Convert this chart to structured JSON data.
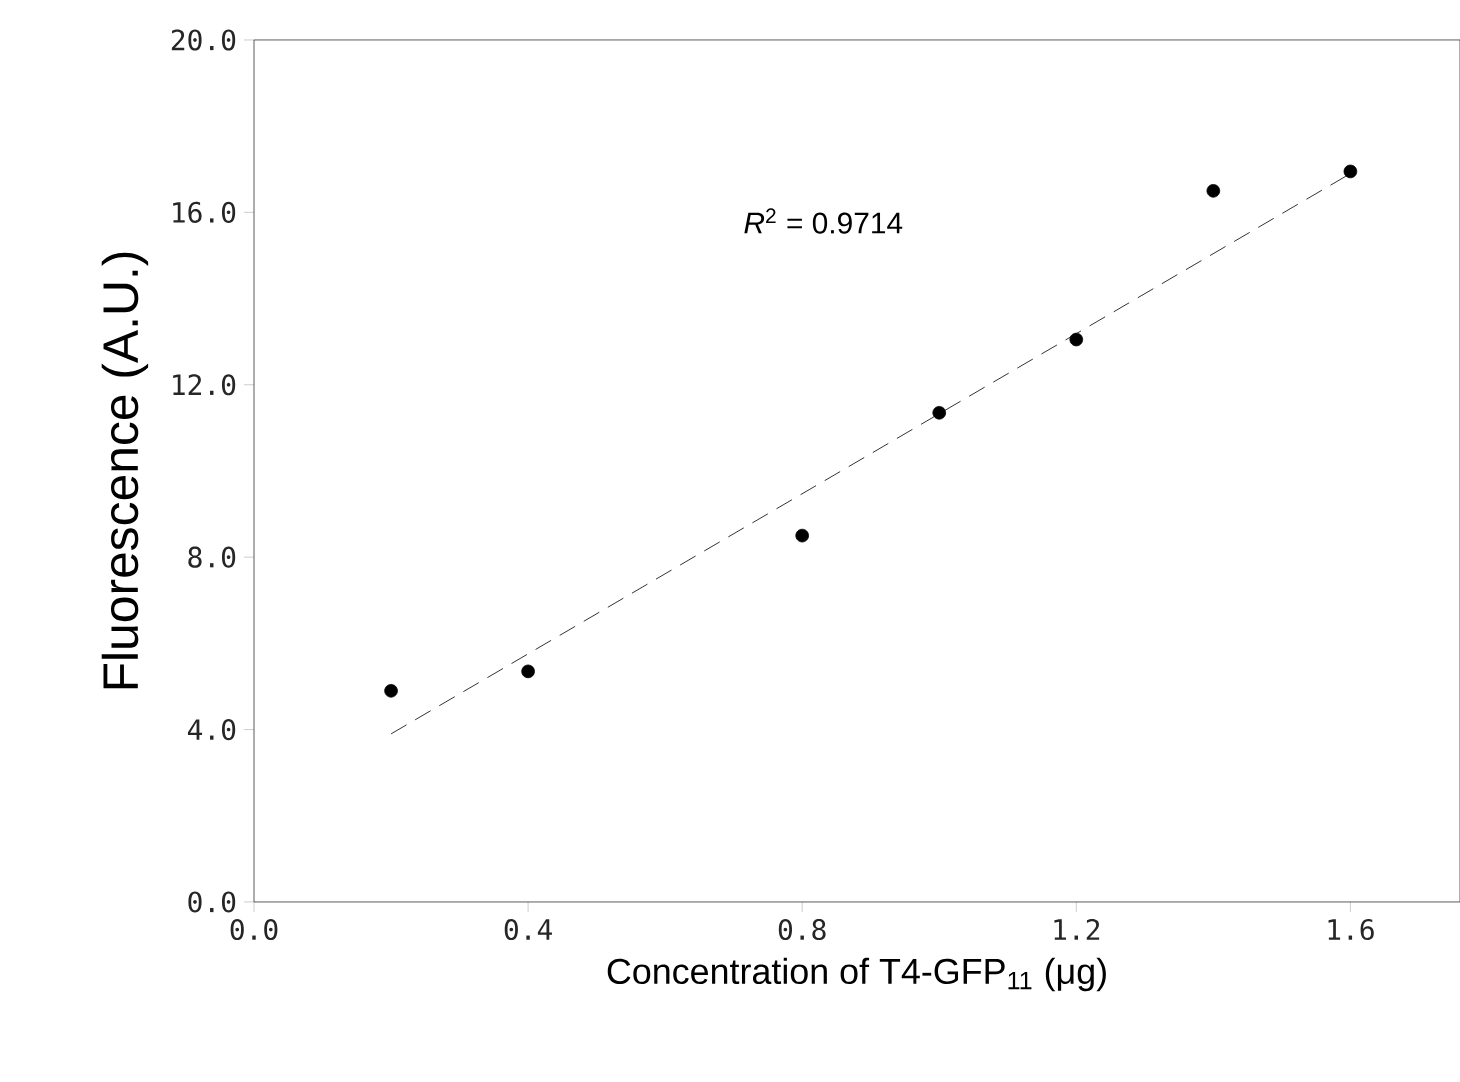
{
  "chart_data": {
    "type": "scatter",
    "xlabel": "Concentration of T4-GFP$_{11}$ (μg)",
    "ylabel": "Fluorescence (A.U.)",
    "xlim": [
      0,
      1.76
    ],
    "ylim": [
      0,
      20
    ],
    "xticks": [
      {
        "value": 0,
        "label": "0.0"
      },
      0.4,
      0.8,
      1.2,
      1.6
    ],
    "yticks": [
      {
        "value": 0,
        "label": "0.0"
      },
      {
        "value": 4,
        "label": "4.0"
      },
      {
        "value": 8,
        "label": "8.0"
      },
      {
        "value": 12,
        "label": "12.0"
      },
      {
        "value": 16,
        "label": "16.0"
      },
      {
        "value": 20,
        "label": "20.0"
      }
    ],
    "annotations": [
      "*R*$^{2}$ = 0.9714"
    ],
    "series": [
      {
        "color": "#000000",
        "marker": "circle",
        "x": [
          0.2,
          0.4,
          0.8,
          1.0,
          1.2,
          1.4,
          1.6
        ],
        "values": [
          4.9,
          5.35,
          8.5,
          11.35,
          13.05,
          16.5,
          16.95
        ]
      },
      {
        "type": "line",
        "color": "#000000",
        "marker": "none",
        "line_style": "dashed",
        "x": [
          0.2,
          1.6
        ],
        "values": [
          3.9,
          16.9
        ]
      }
    ]
  }
}
